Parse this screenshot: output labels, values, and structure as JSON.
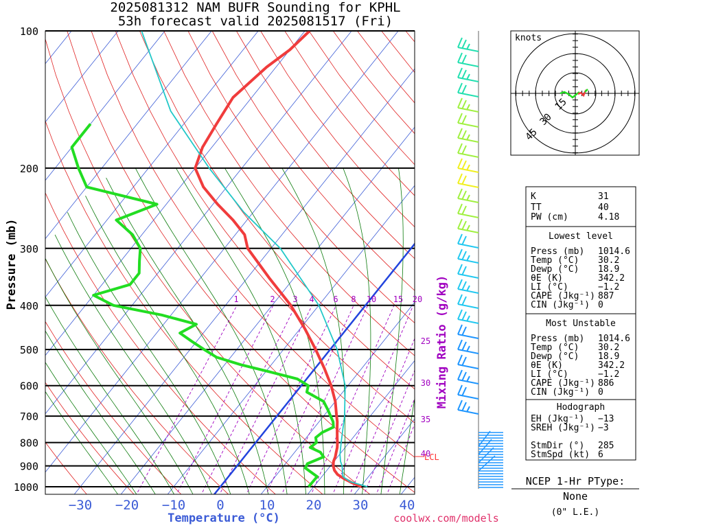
{
  "title": {
    "line1": "2025081312 NAM BUFR Sounding for KPHL",
    "line2": "53h forecast valid 2025081517 (Fri)"
  },
  "chart_data": {
    "type": "line",
    "subtype": "skew-t log-p sounding",
    "ylabel": "Pressure (mb)",
    "xlabel": "Temperature (°C)",
    "y_scale": "log",
    "ylim": [
      1050,
      100
    ],
    "xlim": [
      -40,
      40
    ],
    "pressure_ticks": [
      1000,
      900,
      800,
      700,
      600,
      500,
      400,
      300,
      200,
      100
    ],
    "pressure_labels": [
      "1000",
      "900",
      "800",
      "700",
      "600",
      "500",
      "400",
      "300",
      "200",
      "100"
    ],
    "temperature_ticks": [
      -30,
      -20,
      -10,
      0,
      10,
      20,
      30,
      40
    ],
    "temperature_labels": [
      "−30",
      "−20",
      "−10",
      "0",
      "10",
      "20",
      "30",
      "40"
    ],
    "mixing_ratio_axis_label": "Mixing Ratio (g/kg)",
    "mixing_ratio_top_labels": [
      "1",
      "2",
      "3",
      "4",
      "6",
      "8",
      "10",
      "15",
      "20"
    ],
    "mixing_ratio_side_labels": [
      "25",
      "30",
      "35",
      "40"
    ],
    "lcl_label": "LCL",
    "series": [
      {
        "name": "",
        "color": "#f03c3c",
        "points": [
          [
            1000,
            30.2
          ],
          [
            980,
            27.5
          ],
          [
            960,
            25.1
          ],
          [
            940,
            23.0
          ],
          [
            920,
            21.6
          ],
          [
            900,
            20.6
          ],
          [
            880,
            19.9
          ],
          [
            860,
            19.5
          ],
          [
            840,
            18.9
          ],
          [
            820,
            18.3
          ],
          [
            800,
            17.5
          ],
          [
            780,
            16.6
          ],
          [
            760,
            15.7
          ],
          [
            740,
            14.8
          ],
          [
            720,
            13.9
          ],
          [
            700,
            12.8
          ],
          [
            650,
            10.0
          ],
          [
            600,
            6.4
          ],
          [
            550,
            2.0
          ],
          [
            500,
            -3.1
          ],
          [
            450,
            -9.0
          ],
          [
            400,
            -16.0
          ],
          [
            350,
            -25.0
          ],
          [
            300,
            -35.0
          ],
          [
            280,
            -38.0
          ],
          [
            260,
            -43.0
          ],
          [
            240,
            -49.0
          ],
          [
            220,
            -55.0
          ],
          [
            200,
            -60.0
          ],
          [
            180,
            -62.0
          ],
          [
            160,
            -63.0
          ],
          [
            140,
            -64.0
          ],
          [
            120,
            -62.0
          ],
          [
            110,
            -60.0
          ],
          [
            100,
            -59.0
          ]
        ]
      },
      {
        "name": "",
        "color": "#22dd22",
        "points": [
          [
            1000,
            18.9
          ],
          [
            950,
            19.0
          ],
          [
            910,
            15.0
          ],
          [
            890,
            14.7
          ],
          [
            860,
            17.0
          ],
          [
            840,
            15.5
          ],
          [
            820,
            12.5
          ],
          [
            800,
            13.0
          ],
          [
            780,
            12.0
          ],
          [
            760,
            12.5
          ],
          [
            740,
            14.0
          ],
          [
            720,
            13.0
          ],
          [
            700,
            11.5
          ],
          [
            680,
            10.0
          ],
          [
            650,
            7.5
          ],
          [
            620,
            2.3
          ],
          [
            600,
            1.5
          ],
          [
            580,
            -2.0
          ],
          [
            560,
            -9.0
          ],
          [
            540,
            -16.5
          ],
          [
            520,
            -23.0
          ],
          [
            500,
            -27.0
          ],
          [
            480,
            -31.0
          ],
          [
            460,
            -35.0
          ],
          [
            440,
            -33.0
          ],
          [
            420,
            -42.0
          ],
          [
            400,
            -54.0
          ],
          [
            380,
            -60.0
          ],
          [
            360,
            -54.0
          ],
          [
            340,
            -54.0
          ],
          [
            320,
            -56.0
          ],
          [
            300,
            -58.0
          ],
          [
            280,
            -62.0
          ],
          [
            260,
            -68.0
          ],
          [
            240,
            -62.0
          ],
          [
            220,
            -80.0
          ],
          [
            200,
            -85.0
          ],
          [
            180,
            -90.0
          ],
          [
            160,
            -90.0
          ]
        ]
      },
      {
        "name": "",
        "color": "#22c8c8",
        "points": [
          [
            1000,
            31.5
          ],
          [
            975,
            27.0
          ],
          [
            950,
            24.5
          ],
          [
            900,
            22.5
          ],
          [
            880,
            21.4
          ],
          [
            850,
            20.1
          ],
          [
            800,
            18.3
          ],
          [
            700,
            14.5
          ],
          [
            600,
            9.4
          ],
          [
            500,
            1.5
          ],
          [
            400,
            -10.0
          ],
          [
            300,
            -28.0
          ],
          [
            250,
            -42.0
          ],
          [
            200,
            -57.0
          ],
          [
            150,
            -75.0
          ],
          [
            100,
            -95.0
          ]
        ]
      }
    ],
    "wind_barb_colors": [
      "#1e96ff",
      "#22c8f0",
      "#22e0b0",
      "#a0f040",
      "#f0f020"
    ],
    "hodograph": {
      "units": "knots",
      "ring_labels": [
        "15",
        "30",
        "45"
      ]
    }
  },
  "indices": {
    "k_label": "K",
    "k_value": "31",
    "tt_label": "TT",
    "tt_value": "40",
    "pw_label": "PW (cm)",
    "pw_value": "4.18",
    "lowest_header": "Lowest level",
    "lowest_rows": [
      [
        "Press (mb)",
        "1014.6"
      ],
      [
        "Temp (°C)",
        "30.2"
      ],
      [
        "Dewp (°C)",
        "18.9"
      ],
      [
        "θE (K)",
        "342.2"
      ],
      [
        "LI (°C)",
        "−1.2"
      ],
      [
        "CAPE (Jkg⁻¹)",
        "887"
      ],
      [
        "CIN (Jkg⁻¹)",
        "0"
      ]
    ],
    "unstable_header": "Most Unstable",
    "unstable_rows": [
      [
        "Press (mb)",
        "1014.6"
      ],
      [
        "Temp (°C)",
        "30.2"
      ],
      [
        "Dewp (°C)",
        "18.9"
      ],
      [
        "θE (K)",
        "342.2"
      ],
      [
        "LI (°C)",
        "−1.2"
      ],
      [
        "CAPE (Jkg⁻¹)",
        "886"
      ],
      [
        "CIN (Jkg⁻¹)",
        "0"
      ]
    ],
    "hodo_header": "Hodograph",
    "hodo_rows": [
      [
        "EH (Jkg⁻¹)",
        "−13"
      ],
      [
        "SREH (Jkg⁻¹)",
        "−3"
      ],
      [
        "",
        ""
      ],
      [
        "StmDir (°)",
        "285"
      ],
      [
        "StmSpd (kt)",
        "6"
      ]
    ]
  },
  "ptype": {
    "title": "NCEP 1-Hr PType:",
    "value": "None",
    "sub": "(0\" L.E.)"
  },
  "credit": "coolwx.com/models"
}
